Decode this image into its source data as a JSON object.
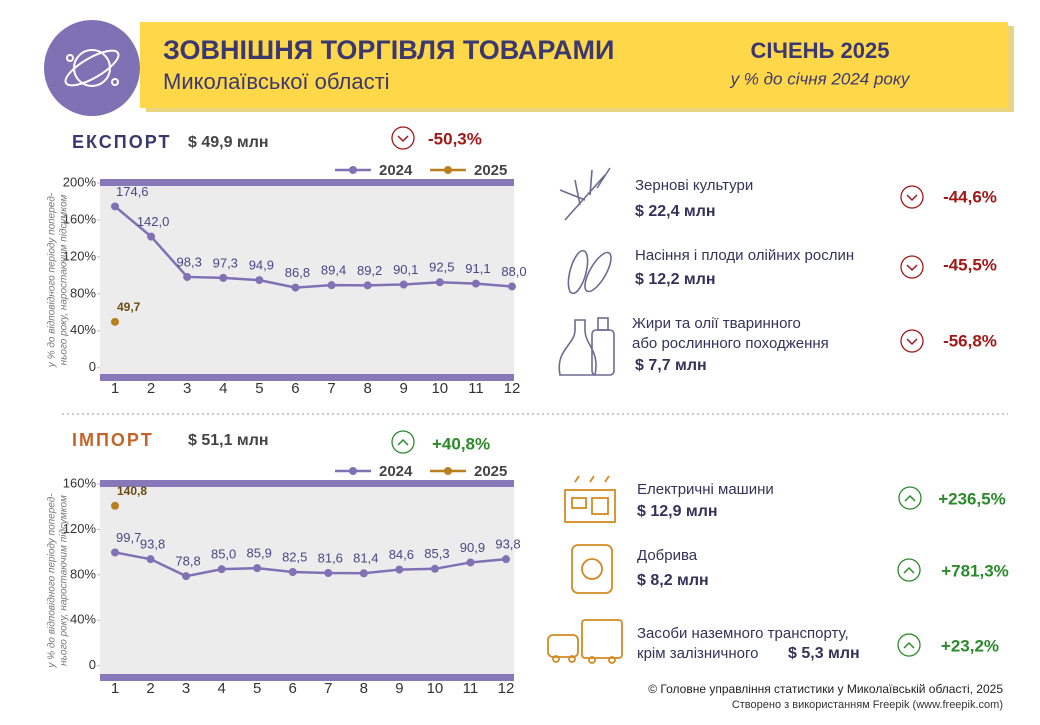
{
  "header": {
    "title": "ЗОВНІШНЯ ТОРГІВЛЯ ТОВАРАМИ",
    "subtitle": "Миколаївської області",
    "period": "СІЧЕНЬ 2025",
    "comparison": "у % до січня 2024 року"
  },
  "chart_data": [
    {
      "type": "line",
      "title": "ЕКСПОРТ",
      "total": "$ 49,9 млн",
      "change": "-50,3%",
      "y_label": [
        "у % до відповідного періоду поперед-",
        "нього року, наростаючим підсумком"
      ],
      "categories": [
        1,
        2,
        3,
        4,
        5,
        6,
        7,
        8,
        9,
        10,
        11,
        12
      ],
      "series": [
        {
          "name": "2024",
          "color": "#7f72b4",
          "values": [
            174.6,
            142.0,
            98.3,
            97.3,
            94.9,
            86.8,
            89.4,
            89.2,
            90.1,
            92.5,
            91.1,
            88.0
          ],
          "value_labels": [
            "174,6",
            "142,0",
            "98,3",
            "97,3",
            "94,9",
            "86,8",
            "89,4",
            "89,2",
            "90,1",
            "92,5",
            "91,1",
            "88,0"
          ]
        },
        {
          "name": "2025",
          "color": "#b8801f",
          "values": [
            49.7,
            null,
            null,
            null,
            null,
            null,
            null,
            null,
            null,
            null,
            null,
            null
          ],
          "value_labels": [
            "49,7",
            null,
            null,
            null,
            null,
            null,
            null,
            null,
            null,
            null,
            null,
            null
          ]
        }
      ],
      "ylim": [
        -10,
        200
      ],
      "yticks": [
        0,
        {
          "value": 40,
          "label": "40%"
        },
        {
          "value": 80,
          "label": "80%"
        },
        {
          "value": 120,
          "label": "120%"
        },
        {
          "value": 160,
          "label": "160%"
        },
        {
          "value": 200,
          "label": "200%"
        }
      ]
    },
    {
      "type": "line",
      "title": "ІМПОРТ",
      "total": "$ 51,1 млн",
      "change": "+40,8%",
      "y_label": [
        "у % до відповідного періоду поперед-",
        "нього року, наростаючим підсумком"
      ],
      "categories": [
        1,
        2,
        3,
        4,
        5,
        6,
        7,
        8,
        9,
        10,
        11,
        12
      ],
      "series": [
        {
          "name": "2024",
          "color": "#7f72b4",
          "values": [
            99.7,
            93.8,
            78.8,
            85.0,
            85.9,
            82.5,
            81.6,
            81.4,
            84.6,
            85.3,
            90.9,
            93.8
          ],
          "value_labels": [
            "99,7",
            "93,8",
            "78,8",
            "85,0",
            "85,9",
            "82,5",
            "81,6",
            "81,4",
            "84,6",
            "85,3",
            "90,9",
            "93,8"
          ]
        },
        {
          "name": "2025",
          "color": "#b8801f",
          "values": [
            140.8,
            null,
            null,
            null,
            null,
            null,
            null,
            null,
            null,
            null,
            null,
            null
          ],
          "value_labels": [
            "140,8",
            null,
            null,
            null,
            null,
            null,
            null,
            null,
            null,
            null,
            null,
            null
          ]
        }
      ],
      "ylim": [
        -10,
        160
      ],
      "yticks": [
        0,
        {
          "value": 40,
          "label": "40%"
        },
        {
          "value": 80,
          "label": "80%"
        },
        {
          "value": 120,
          "label": "120%"
        },
        {
          "value": 160,
          "label": "160%"
        }
      ]
    }
  ],
  "export_items": [
    {
      "name": [
        "Зернові культури"
      ],
      "value": "$ 22,4 млн",
      "change": "-44,6%"
    },
    {
      "name": [
        "Насіння і плоди олійних рослин"
      ],
      "value": "$ 12,2 млн",
      "change": "-45,5%"
    },
    {
      "name": [
        "Жири та олії тваринного",
        "або рослинного походження"
      ],
      "value": "$ 7,7 млн",
      "change": "-56,8%"
    }
  ],
  "import_items": [
    {
      "name": [
        "Електричні машини"
      ],
      "value": "$ 12,9 млн",
      "change": "+236,5%"
    },
    {
      "name": [
        "Добрива"
      ],
      "value": "$ 8,2 млн",
      "change": "+781,3%"
    },
    {
      "name": [
        "Засоби наземного транспорту,",
        "крім залізничного"
      ],
      "value": "$ 5,3 млн",
      "change": "+23,2%"
    }
  ],
  "footer": {
    "copyright": "© Головне управління статистики у Миколаївській області, 2025",
    "credit": "Створено з використанням Freepik (www.freepik.com)"
  }
}
